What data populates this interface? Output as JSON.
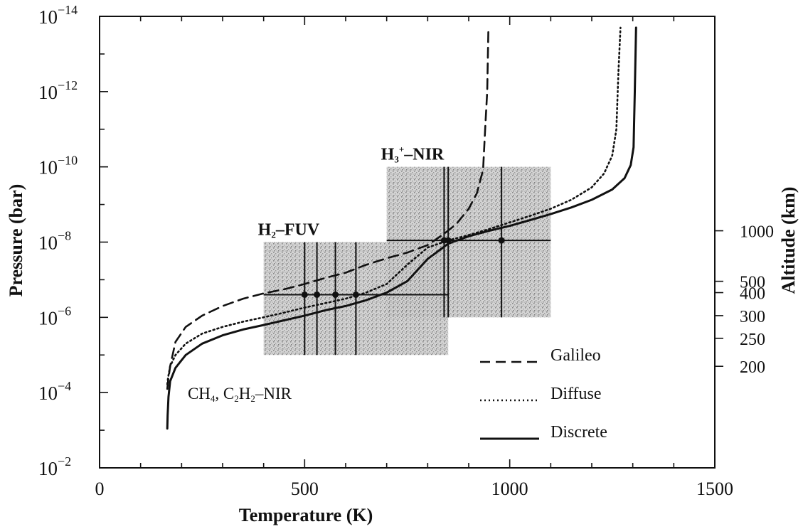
{
  "chart_data": {
    "type": "line",
    "xlabel": "Temperature (K)",
    "ylabel": "Pressure (bar)",
    "y2label": "Altitude (km)",
    "xlim": [
      0,
      1500
    ],
    "y_log": true,
    "y_inverted": true,
    "ylim_bar": [
      1e-14,
      0.01
    ],
    "x_ticks": [
      "0",
      "500",
      "1000",
      "1500"
    ],
    "x_tick_values": [
      0,
      500,
      1000,
      1500
    ],
    "y_ticks": [
      {
        "value": 1e-14,
        "base": "10",
        "exp": "−14"
      },
      {
        "value": 1e-12,
        "base": "10",
        "exp": "−12"
      },
      {
        "value": 1e-10,
        "base": "10",
        "exp": "−10"
      },
      {
        "value": 1e-08,
        "base": "10",
        "exp": "−8"
      },
      {
        "value": 1e-06,
        "base": "10",
        "exp": "−6"
      },
      {
        "value": 0.0001,
        "base": "10",
        "exp": "−4"
      },
      {
        "value": 0.01,
        "base": "10",
        "exp": "−2"
      }
    ],
    "altitude_ticks": [
      {
        "label": "1000",
        "pressure": 5e-09
      },
      {
        "label": "500",
        "pressure": 1.1e-07
      },
      {
        "label": "400",
        "pressure": 2.2e-07
      },
      {
        "label": "300",
        "pressure": 9e-07
      },
      {
        "label": "250",
        "pressure": 3.6e-06
      },
      {
        "label": "200",
        "pressure": 2e-05
      }
    ],
    "series": [
      {
        "name": "Galileo",
        "dash": "dashed",
        "x": [
          165,
          167,
          172,
          185,
          210,
          250,
          300,
          350,
          400,
          450,
          500,
          550,
          600,
          650,
          700,
          750,
          800,
          840,
          870,
          900,
          920,
          935,
          940,
          945,
          948
        ],
        "y": [
          8e-05,
          5e-05,
          2e-05,
          4.5e-06,
          1.8e-06,
          9e-07,
          5e-07,
          3.2e-07,
          2.3e-07,
          1.8e-07,
          1.3e-07,
          9e-08,
          6.5e-08,
          4e-08,
          2.7e-08,
          1.9e-08,
          1.2e-08,
          6e-09,
          3.3e-09,
          1.3e-09,
          5e-10,
          1.2e-10,
          1e-11,
          1e-12,
          2e-14
        ]
      },
      {
        "name": "Diffuse",
        "dash": "dotted",
        "x": [
          165,
          167,
          172,
          185,
          210,
          250,
          300,
          350,
          400,
          450,
          500,
          550,
          600,
          650,
          700,
          750,
          800,
          850,
          900,
          950,
          1000,
          1050,
          1100,
          1150,
          1200,
          1230,
          1250,
          1260,
          1265,
          1270
        ],
        "y": [
          6e-05,
          4e-05,
          2e-05,
          1e-05,
          5e-06,
          2.7e-06,
          1.8e-06,
          1.3e-06,
          1e-06,
          7.5e-07,
          5.5e-07,
          4.2e-07,
          3.2e-07,
          2.2e-07,
          1.3e-07,
          4e-08,
          1.4e-08,
          9e-09,
          6.5e-09,
          4.5e-09,
          3e-09,
          2e-09,
          1.3e-09,
          7.5e-10,
          3.5e-10,
          1.5e-10,
          5e-11,
          1e-11,
          3e-13,
          2e-14
        ]
      },
      {
        "name": "Discrete",
        "dash": "solid",
        "x": [
          165,
          166,
          168,
          172,
          185,
          210,
          250,
          300,
          350,
          400,
          450,
          500,
          550,
          600,
          650,
          700,
          750,
          800,
          850,
          900,
          950,
          1000,
          1050,
          1100,
          1150,
          1200,
          1250,
          1280,
          1295,
          1302,
          1305,
          1308
        ],
        "y": [
          0.0009,
          0.0004,
          0.00013,
          5e-05,
          2.2e-05,
          1e-05,
          5e-06,
          3e-06,
          2.1e-06,
          1.6e-06,
          1.2e-06,
          9e-07,
          6.5e-07,
          5e-07,
          3.5e-07,
          2.2e-07,
          1.1e-07,
          2.8e-08,
          1.1e-08,
          7e-09,
          5e-09,
          3.7e-09,
          2.6e-09,
          1.8e-09,
          1.2e-09,
          7.5e-10,
          4e-10,
          2e-10,
          9e-11,
          3e-11,
          1e-12,
          2e-14
        ]
      }
    ],
    "regions": [
      {
        "label_base": "H",
        "label_sub": "2",
        "label_sup": "",
        "label_rest": "–FUV",
        "x": [
          400,
          850
        ],
        "y": [
          1e-08,
          1e-05
        ]
      },
      {
        "label_base": "H",
        "label_sub": "3",
        "label_sup": "+",
        "label_rest": "–NIR",
        "x": [
          700,
          1100
        ],
        "y": [
          1e-10,
          1e-06
        ]
      }
    ],
    "error_bars": [
      {
        "x": 500,
        "y": 2.5e-07,
        "xerr": [
          400,
          850
        ],
        "yerr": [
          1e-08,
          1e-05
        ]
      },
      {
        "x": 530,
        "y": 2.5e-07,
        "xerr": null,
        "yerr": [
          1e-08,
          1e-05
        ]
      },
      {
        "x": 575,
        "y": 2.5e-07,
        "xerr": null,
        "yerr": [
          1e-08,
          1e-05
        ]
      },
      {
        "x": 625,
        "y": 2.5e-07,
        "xerr": null,
        "yerr": [
          1e-08,
          1e-05
        ]
      },
      {
        "x": 840,
        "y": 9e-09,
        "xerr": [
          700,
          1100
        ],
        "yerr": [
          1e-10,
          1e-06
        ]
      },
      {
        "x": 850,
        "y": 9e-09,
        "xerr": null,
        "yerr": [
          1e-10,
          1e-06
        ]
      },
      {
        "x": 980,
        "y": 9e-09,
        "xerr": null,
        "yerr": [
          1e-10,
          1e-06
        ]
      }
    ],
    "annotations": [
      {
        "type": "chem",
        "parts": [
          {
            "t": "CH"
          },
          {
            "t": "4",
            "sub": true
          },
          {
            "t": ", C"
          },
          {
            "t": "2",
            "sub": true
          },
          {
            "t": "H"
          },
          {
            "t": "2",
            "sub": true
          },
          {
            "t": "–NIR"
          }
        ]
      }
    ],
    "legend": {
      "position": "lower-right",
      "entries": [
        "Galileo",
        "Diffuse",
        "Discrete"
      ]
    },
    "grid": false
  }
}
